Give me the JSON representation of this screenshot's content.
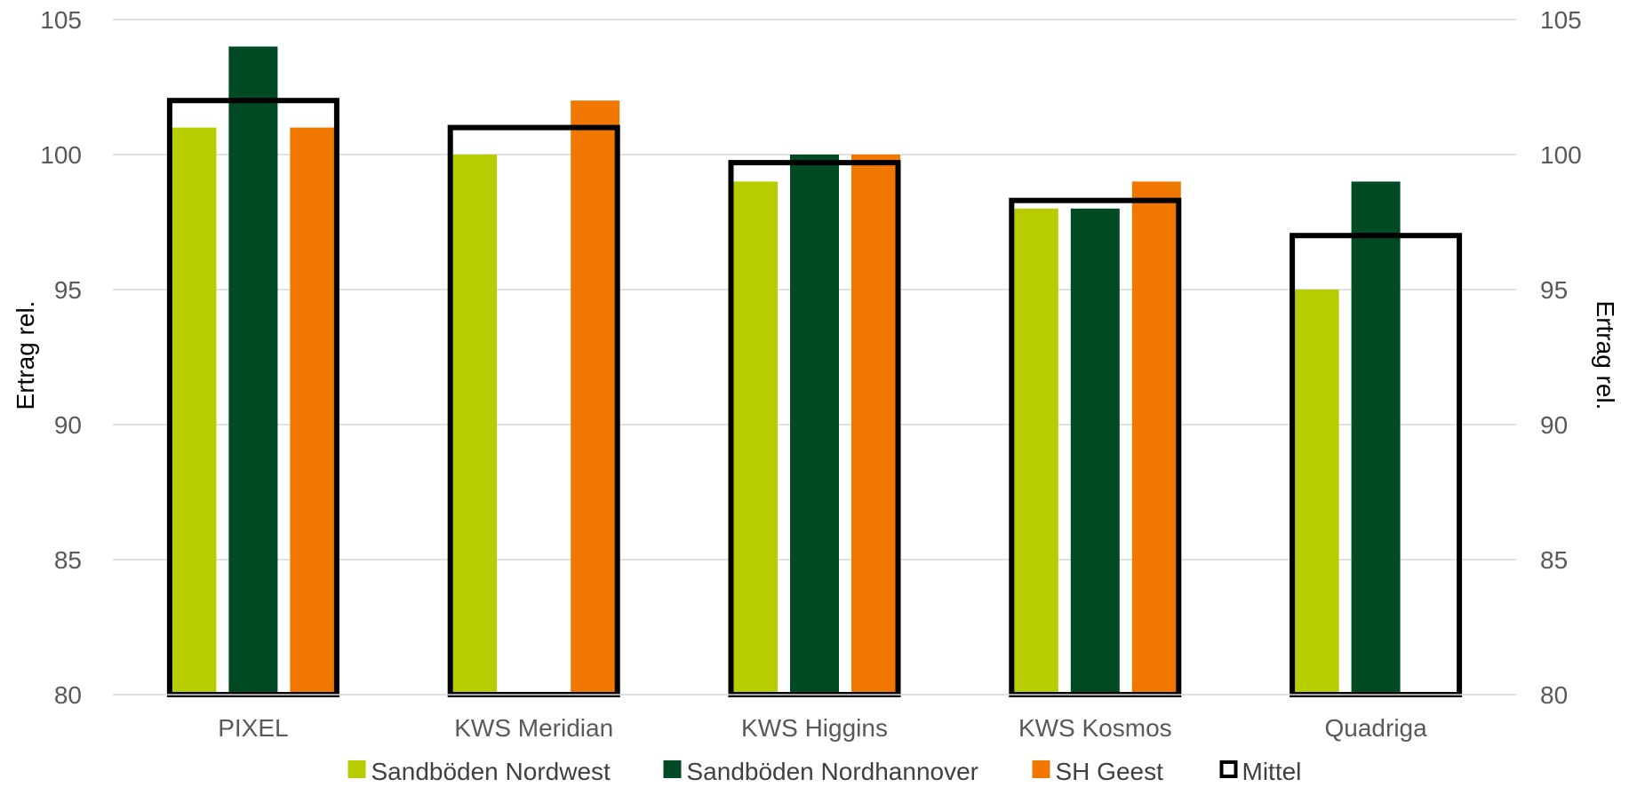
{
  "chart_data": {
    "type": "bar",
    "title": "",
    "xlabel": "",
    "ylabel": "Ertrag rel.",
    "y2label": "Ertrag rel.",
    "ylim": [
      80,
      105
    ],
    "yticks": [
      80,
      85,
      90,
      95,
      100,
      105
    ],
    "grid": true,
    "legend_position": "bottom",
    "categories": [
      "PIXEL",
      "KWS Meridian",
      "KWS Higgins",
      "KWS Kosmos",
      "Quadriga"
    ],
    "series": [
      {
        "name": "Sandböden Nordwest",
        "color": "#b8cd00",
        "values": [
          101,
          100,
          99,
          98,
          95
        ]
      },
      {
        "name": "Sandböden Nordhannover",
        "color": "#004b23",
        "values": [
          104,
          null,
          100,
          98,
          99
        ]
      },
      {
        "name": "SH Geest",
        "color": "#f07800",
        "values": [
          101,
          102,
          100,
          99,
          null
        ]
      }
    ],
    "mean": {
      "name": "Mittel",
      "color": "#000000",
      "values": [
        102,
        101,
        99.7,
        98.3,
        97
      ]
    }
  }
}
